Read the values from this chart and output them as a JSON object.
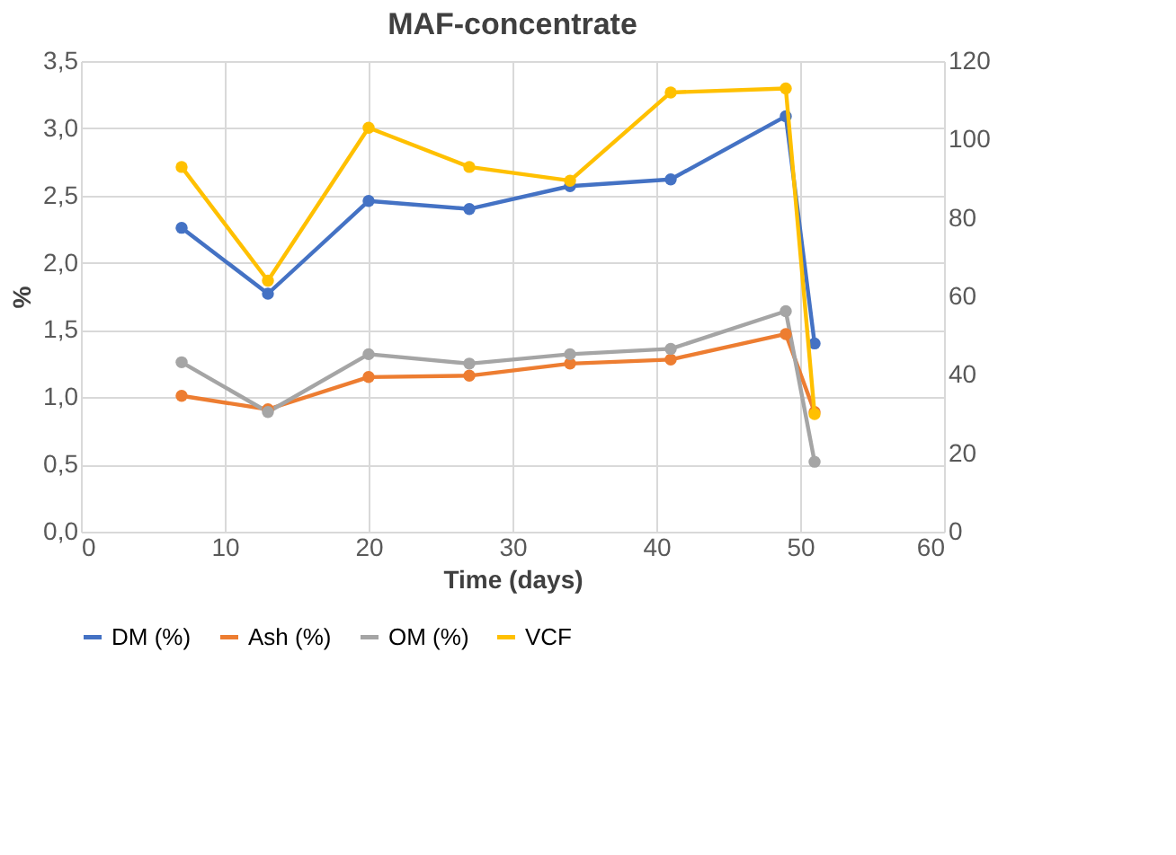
{
  "chart_data": {
    "type": "line",
    "title": "MAF-concentrate",
    "xlabel": "Time (days)",
    "ylabel": "%",
    "x": [
      7,
      13,
      20,
      27,
      34,
      41,
      49,
      51
    ],
    "series": [
      {
        "name": "DM (%)",
        "color": "#4472c4",
        "values": [
          2.26,
          1.77,
          2.46,
          2.4,
          2.57,
          2.62,
          3.09,
          1.4
        ]
      },
      {
        "name": "Ash (%)",
        "color": "#ed7d31",
        "values": [
          1.01,
          0.91,
          1.15,
          1.16,
          1.25,
          1.28,
          1.47,
          0.89
        ]
      },
      {
        "name": "OM (%)",
        "color": "#a5a5a5",
        "values": [
          1.26,
          0.89,
          1.32,
          1.25,
          1.32,
          1.36,
          1.64,
          0.52
        ]
      },
      {
        "name": "VCF",
        "color": "#ffc000",
        "axis": "y2",
        "values": [
          93,
          64,
          103,
          93,
          89.5,
          112,
          113,
          30
        ]
      }
    ],
    "xlim": [
      0,
      60
    ],
    "xticks": [
      0,
      10,
      20,
      30,
      40,
      50,
      60
    ],
    "ylim": [
      0,
      3.5
    ],
    "yticks": [
      {
        "value": 0,
        "label": "0,0"
      },
      {
        "value": 0.5,
        "label": "0,5"
      },
      {
        "value": 1,
        "label": "1,0"
      },
      {
        "value": 1.5,
        "label": "1,5"
      },
      {
        "value": 2,
        "label": "2,0"
      },
      {
        "value": 2.5,
        "label": "2,5"
      },
      {
        "value": 3,
        "label": "3,0"
      },
      {
        "value": 3.5,
        "label": "3,5"
      }
    ],
    "y2lim": [
      0,
      120
    ],
    "y2ticks": [
      0,
      20,
      40,
      60,
      80,
      100,
      120
    ],
    "grid": true,
    "legend": "bottom",
    "marker": "circle",
    "line_style": "solid"
  }
}
